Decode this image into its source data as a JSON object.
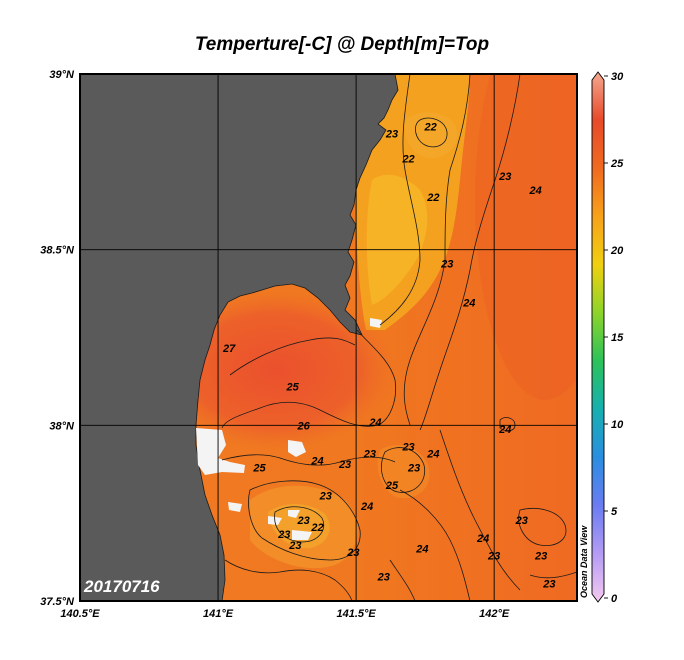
{
  "title": "Temperture[-C] @ Depth[m]=Top",
  "date_label": "20170716",
  "watermark": "Ocean Data View",
  "map": {
    "lon_range": [
      140.5,
      142.3
    ],
    "lat_range": [
      37.5,
      39.0
    ],
    "lon_ticks": [
      {
        "value": 140.5,
        "label": "140.5°E"
      },
      {
        "value": 141.0,
        "label": "141°E"
      },
      {
        "value": 141.5,
        "label": "141.5°E"
      },
      {
        "value": 142.0,
        "label": "142°E"
      }
    ],
    "lat_ticks": [
      {
        "value": 39.0,
        "label": "39°N"
      },
      {
        "value": 38.5,
        "label": "38.5°N"
      },
      {
        "value": 38.0,
        "label": "38°N"
      },
      {
        "value": 37.5,
        "label": "37.5°N"
      }
    ],
    "grid": true,
    "land_color": "#5a5a5a"
  },
  "colorbar": {
    "range": [
      0,
      30
    ],
    "ticks": [
      "30",
      "25",
      "20",
      "15",
      "10",
      "5",
      "0"
    ],
    "colors": [
      "#f6c8f0",
      "#b49cf4",
      "#6a7cf2",
      "#2a8ee0",
      "#16b0b0",
      "#2cc25a",
      "#8cd42a",
      "#f0d010",
      "#f7a21a",
      "#f06a20",
      "#e84a2a",
      "#f4a890"
    ]
  },
  "contour_labels": [
    {
      "text": "22",
      "lon": 141.77,
      "lat": 38.85
    },
    {
      "text": "23",
      "lon": 141.63,
      "lat": 38.83
    },
    {
      "text": "22",
      "lon": 141.69,
      "lat": 38.76
    },
    {
      "text": "22",
      "lon": 141.78,
      "lat": 38.65
    },
    {
      "text": "23",
      "lon": 142.04,
      "lat": 38.71
    },
    {
      "text": "24",
      "lon": 142.15,
      "lat": 38.67
    },
    {
      "text": "23",
      "lon": 141.83,
      "lat": 38.46
    },
    {
      "text": "24",
      "lon": 141.91,
      "lat": 38.35
    },
    {
      "text": "27",
      "lon": 141.04,
      "lat": 38.22
    },
    {
      "text": "25",
      "lon": 141.27,
      "lat": 38.11
    },
    {
      "text": "24",
      "lon": 141.57,
      "lat": 38.01
    },
    {
      "text": "26",
      "lon": 141.31,
      "lat": 38.0
    },
    {
      "text": "24",
      "lon": 142.04,
      "lat": 37.99
    },
    {
      "text": "23",
      "lon": 141.69,
      "lat": 37.94
    },
    {
      "text": "23",
      "lon": 141.55,
      "lat": 37.92
    },
    {
      "text": "24",
      "lon": 141.78,
      "lat": 37.92
    },
    {
      "text": "24",
      "lon": 141.36,
      "lat": 37.9
    },
    {
      "text": "23",
      "lon": 141.46,
      "lat": 37.89
    },
    {
      "text": "23",
      "lon": 141.71,
      "lat": 37.88
    },
    {
      "text": "25",
      "lon": 141.15,
      "lat": 37.88
    },
    {
      "text": "25",
      "lon": 141.63,
      "lat": 37.83
    },
    {
      "text": "23",
      "lon": 141.39,
      "lat": 37.8
    },
    {
      "text": "24",
      "lon": 141.54,
      "lat": 37.77
    },
    {
      "text": "23",
      "lon": 141.31,
      "lat": 37.73
    },
    {
      "text": "22",
      "lon": 141.36,
      "lat": 37.71
    },
    {
      "text": "23",
      "lon": 142.1,
      "lat": 37.73
    },
    {
      "text": "23",
      "lon": 141.24,
      "lat": 37.69
    },
    {
      "text": "23",
      "lon": 141.28,
      "lat": 37.66
    },
    {
      "text": "24",
      "lon": 141.96,
      "lat": 37.68
    },
    {
      "text": "24",
      "lon": 141.74,
      "lat": 37.65
    },
    {
      "text": "23",
      "lon": 141.49,
      "lat": 37.64
    },
    {
      "text": "23",
      "lon": 142.0,
      "lat": 37.63
    },
    {
      "text": "23",
      "lon": 142.17,
      "lat": 37.63
    },
    {
      "text": "23",
      "lon": 141.6,
      "lat": 37.57
    },
    {
      "text": "23",
      "lon": 142.2,
      "lat": 37.55
    }
  ]
}
